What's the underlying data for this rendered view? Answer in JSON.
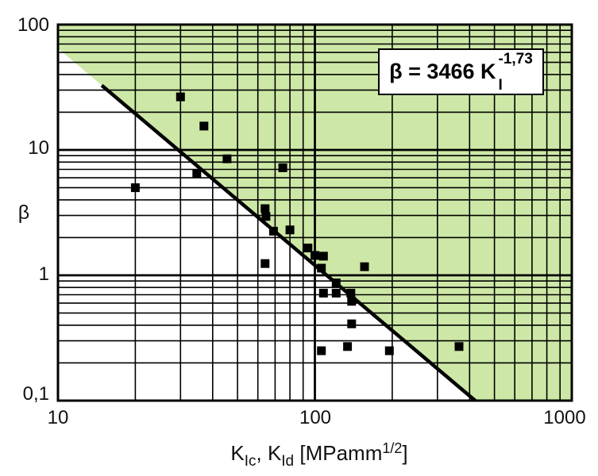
{
  "colors": {
    "shade": "#cde8a6",
    "grid": "#000000",
    "marker": "#000000",
    "fit_line": "#000000",
    "text": "#111111",
    "annotation_bg": "#ffffff",
    "annotation_border": "#000000"
  },
  "chart_data": {
    "type": "scatter",
    "title": "",
    "xlabel": "K_Ic, K_Id [MPamm^1/2]",
    "ylabel": "β",
    "x_scale": "log",
    "y_scale": "log",
    "xlim": [
      10,
      1000
    ],
    "ylim": [
      0.1,
      100
    ],
    "grid": "on",
    "x_tick_labels": [
      "10",
      "100",
      "1000"
    ],
    "y_tick_labels": [
      "100",
      "10",
      "1",
      "0,1"
    ],
    "xlabel_parts": [
      {
        "text": "K"
      },
      {
        "text": "Ic",
        "style": "sub"
      },
      {
        "text": ", "
      },
      {
        "text": "K"
      },
      {
        "text": "Id",
        "style": "sub"
      },
      {
        "text": " [MPamm"
      },
      {
        "text": "1/2",
        "style": "sup"
      },
      {
        "text": "]"
      }
    ],
    "annotation": {
      "plain": "β = 3466 K_I^-1,73",
      "base": "β = 3466 K",
      "sup": "-1,73",
      "sub": "I"
    },
    "fit_line": {
      "coefficient": 3466,
      "exponent": -1.73,
      "draw_from_K": 14.8,
      "shaded_side": "above"
    },
    "points": [
      {
        "K": 30,
        "beta": 26.5
      },
      {
        "K": 37,
        "beta": 15.5
      },
      {
        "K": 45.5,
        "beta": 8.5
      },
      {
        "K": 20,
        "beta": 5.0
      },
      {
        "K": 75,
        "beta": 7.2
      },
      {
        "K": 34.7,
        "beta": 6.5
      },
      {
        "K": 64,
        "beta": 3.4
      },
      {
        "K": 64.5,
        "beta": 2.95
      },
      {
        "K": 69,
        "beta": 2.25
      },
      {
        "K": 80,
        "beta": 2.3
      },
      {
        "K": 64,
        "beta": 1.24
      },
      {
        "K": 94,
        "beta": 1.65
      },
      {
        "K": 100,
        "beta": 1.44
      },
      {
        "K": 108,
        "beta": 1.42
      },
      {
        "K": 106,
        "beta": 1.14
      },
      {
        "K": 156,
        "beta": 1.17
      },
      {
        "K": 121,
        "beta": 0.87
      },
      {
        "K": 108,
        "beta": 0.72
      },
      {
        "K": 121,
        "beta": 0.72
      },
      {
        "K": 138,
        "beta": 0.72
      },
      {
        "K": 139,
        "beta": 0.62
      },
      {
        "K": 139,
        "beta": 0.41
      },
      {
        "K": 106,
        "beta": 0.25
      },
      {
        "K": 134,
        "beta": 0.27
      },
      {
        "K": 195,
        "beta": 0.25
      },
      {
        "K": 364,
        "beta": 0.27
      }
    ]
  }
}
